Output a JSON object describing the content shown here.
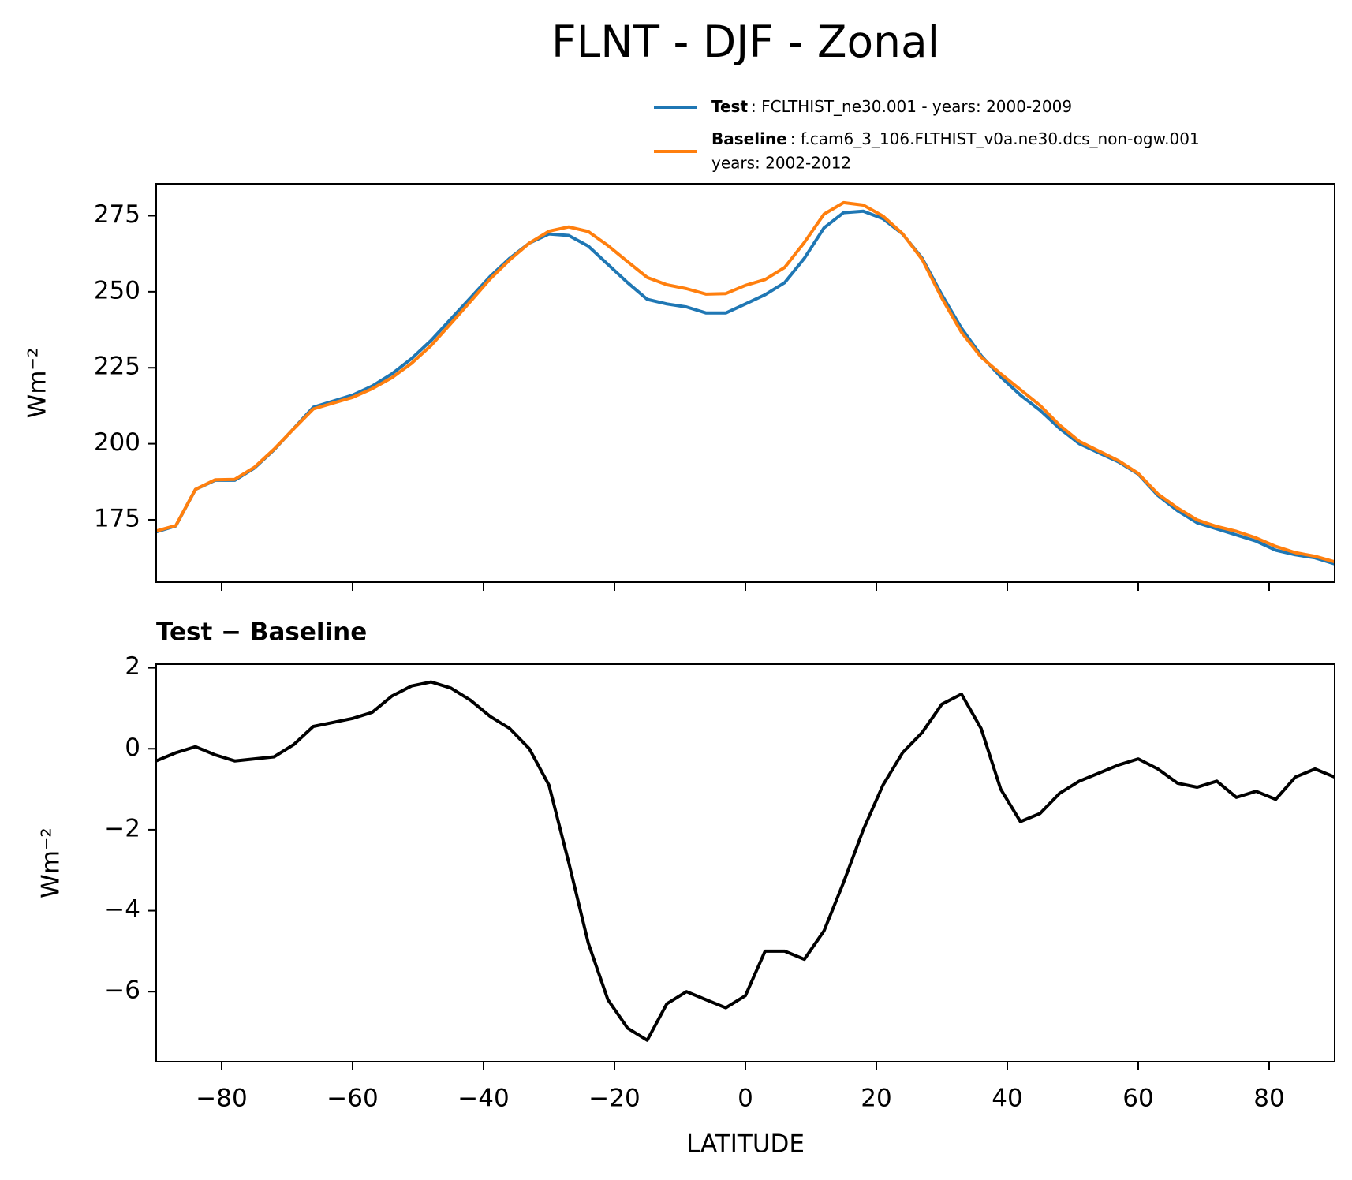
{
  "title": "FLNT - DJF - Zonal",
  "chart_data": [
    {
      "type": "line",
      "ylabel": "Wm⁻²",
      "x": [
        -90,
        -87,
        -84,
        -81,
        -78,
        -75,
        -72,
        -69,
        -66,
        -63,
        -60,
        -57,
        -54,
        -51,
        -48,
        -45,
        -42,
        -39,
        -36,
        -33,
        -30,
        -27,
        -24,
        -21,
        -18,
        -15,
        -12,
        -9,
        -6,
        -3,
        0,
        3,
        6,
        9,
        12,
        15,
        18,
        21,
        24,
        27,
        30,
        33,
        36,
        39,
        42,
        45,
        48,
        51,
        54,
        57,
        60,
        63,
        66,
        69,
        72,
        75,
        78,
        81,
        84,
        87,
        90
      ],
      "xlim": [
        -90,
        90
      ],
      "ylim": [
        154.5,
        285.5
      ],
      "yticks": [
        175,
        200,
        225,
        250,
        275
      ],
      "series": [
        {
          "name": "Test",
          "legend_lines": [
            ": FCLTHIST_ne30.001 - years: 2000-2009"
          ],
          "color": "#1f77b4",
          "values": [
            171,
            173,
            185,
            188,
            188,
            192,
            198,
            205,
            212,
            214,
            216,
            219,
            223,
            228,
            234,
            241,
            248,
            255,
            261,
            266,
            269,
            268.5,
            265,
            259,
            253,
            247.5,
            246,
            245,
            243,
            243,
            246,
            249,
            253,
            261,
            271,
            276,
            276.5,
            274,
            269,
            261,
            249,
            238,
            229,
            222,
            216,
            211,
            205,
            200,
            197,
            194,
            190,
            183,
            178,
            174,
            172,
            170,
            168,
            165,
            163.5,
            162.5,
            160.5
          ]
        },
        {
          "name": "Baseline",
          "legend_lines": [
            ": f.cam6_3_106.FLTHIST_v0a.ne30.dcs_non-ogw.001",
            "years: 2002-2012"
          ],
          "color": "#ff7f0e",
          "values": [
            171.3,
            173.1,
            185,
            188.15,
            188.3,
            192.25,
            198.2,
            204.9,
            211.45,
            213.35,
            215.25,
            218.1,
            221.7,
            226.45,
            232.35,
            239.5,
            246.8,
            254.2,
            260.5,
            266,
            269.9,
            271.3,
            269.8,
            265.2,
            259.9,
            254.7,
            252.3,
            251,
            249.2,
            249.4,
            252.1,
            254,
            258,
            266.2,
            275.5,
            279.3,
            278.5,
            274.9,
            269.1,
            260.6,
            247.9,
            236.65,
            228.5,
            223,
            217.8,
            212.6,
            206.1,
            200.8,
            197.6,
            194.4,
            190.25,
            183.5,
            178.85,
            174.95,
            172.8,
            171.2,
            169.05,
            166.25,
            164.2,
            163,
            161.2
          ]
        }
      ]
    },
    {
      "type": "line",
      "title": "Test − Baseline",
      "xlabel": "LATITUDE",
      "ylabel": "Wm⁻²",
      "x": [
        -90,
        -87,
        -84,
        -81,
        -78,
        -75,
        -72,
        -69,
        -66,
        -63,
        -60,
        -57,
        -54,
        -51,
        -48,
        -45,
        -42,
        -39,
        -36,
        -33,
        -30,
        -27,
        -24,
        -21,
        -18,
        -15,
        -12,
        -9,
        -6,
        -3,
        0,
        3,
        6,
        9,
        12,
        15,
        18,
        21,
        24,
        27,
        30,
        33,
        36,
        39,
        42,
        45,
        48,
        51,
        54,
        57,
        60,
        63,
        66,
        69,
        72,
        75,
        78,
        81,
        84,
        87,
        90
      ],
      "xlim": [
        -90,
        90
      ],
      "xticks": [
        {
          "value": -80,
          "label": "−80"
        },
        {
          "value": -60,
          "label": "−60"
        },
        {
          "value": -40,
          "label": "−40"
        },
        {
          "value": -20,
          "label": "−20"
        },
        0,
        20,
        40,
        60,
        80
      ],
      "ylim": [
        -7.73,
        2.09
      ],
      "yticks": [
        {
          "value": -6,
          "label": "−6"
        },
        {
          "value": -4,
          "label": "−4"
        },
        {
          "value": -2,
          "label": "−2"
        },
        0,
        2
      ],
      "series": [
        {
          "color": "#000000",
          "values": [
            -0.3,
            -0.1,
            0.05,
            -0.15,
            -0.3,
            -0.25,
            -0.2,
            0.1,
            0.55,
            0.65,
            0.75,
            0.9,
            1.3,
            1.55,
            1.65,
            1.5,
            1.2,
            0.8,
            0.5,
            0.0,
            -0.9,
            -2.8,
            -4.8,
            -6.2,
            -6.9,
            -7.2,
            -6.3,
            -6.0,
            -6.2,
            -6.4,
            -6.1,
            -5.0,
            -5.0,
            -5.2,
            -4.5,
            -3.3,
            -2.0,
            -0.9,
            -0.1,
            0.4,
            1.1,
            1.35,
            0.5,
            -1.0,
            -1.8,
            -1.6,
            -1.1,
            -0.8,
            -0.6,
            -0.4,
            -0.25,
            -0.5,
            -0.85,
            -0.95,
            -0.8,
            -1.2,
            -1.05,
            -1.25,
            -0.7,
            -0.5,
            -0.7
          ]
        }
      ]
    }
  ]
}
